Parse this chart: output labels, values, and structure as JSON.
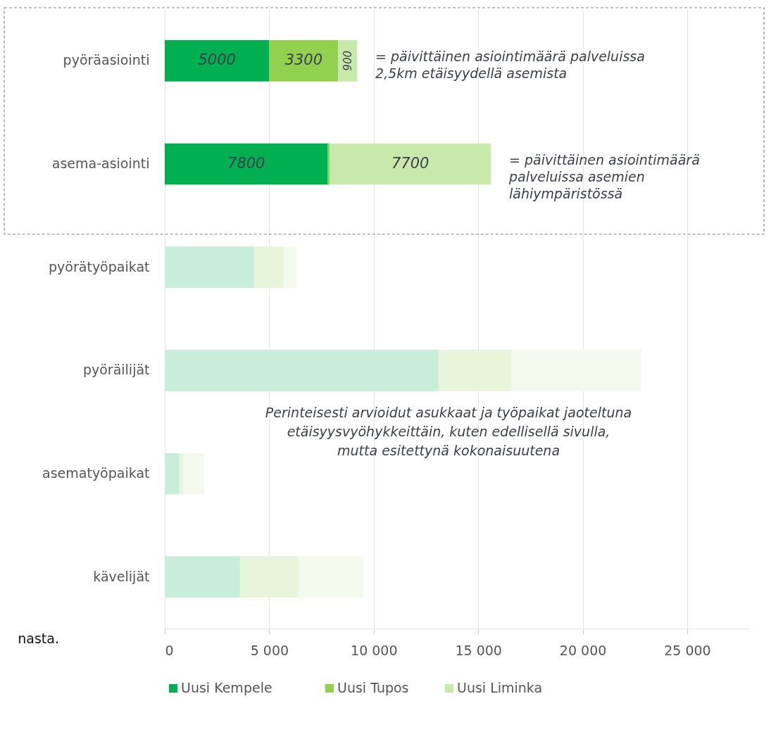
{
  "chart_data": {
    "type": "bar",
    "orientation": "horizontal",
    "stacked": true,
    "categories": [
      "pyöräasiointi",
      "asema-asiointi",
      "pyörätyöpaikat",
      "pyöräilijät",
      "asematyöpaikat",
      "kävelijät"
    ],
    "series": [
      {
        "name": "Uusi Kempele",
        "color": "#00b050",
        "colors": [
          "#00b050",
          "#00b050",
          "#c8eedb",
          "#c8eedb",
          "#c8eedb",
          "#c8eedb"
        ],
        "values": [
          5000,
          7800,
          4300,
          13100,
          700,
          3600
        ],
        "value_labels": [
          "5000",
          "7800",
          null,
          null,
          null,
          null
        ]
      },
      {
        "name": "Uusi Tupos",
        "color": "#92d050",
        "colors": [
          "#92d050",
          "#92d050",
          "#e8f5da",
          "#e8f5da",
          "#e8f5da",
          "#e8f5da"
        ],
        "values": [
          3300,
          100,
          1400,
          3500,
          200,
          2800
        ],
        "value_labels": [
          "3300",
          null,
          null,
          null,
          null,
          null
        ]
      },
      {
        "name": "Uusi Liminka",
        "color": "#c9e8ab",
        "colors": [
          "#c9e8ab",
          "#c9e8ab",
          "#f3f9ed",
          "#f3f9ed",
          "#f3f9ed",
          "#f3f9ed"
        ],
        "values": [
          900,
          7700,
          600,
          6200,
          1000,
          3100
        ],
        "value_labels": [
          "900",
          "7700",
          null,
          null,
          null,
          null
        ]
      }
    ],
    "xlim": [
      0,
      28000
    ],
    "xticks": [
      0,
      {
        "value": 5000,
        "label": "5 000"
      },
      {
        "value": 10000,
        "label": "10 000"
      },
      {
        "value": 15000,
        "label": "15 000"
      },
      {
        "value": 20000,
        "label": "20 000"
      },
      {
        "value": 25000,
        "label": "25 000"
      }
    ],
    "grid": "x",
    "legend": "bottom",
    "annotations": [
      {
        "text": "= päivittäinen asiointimäärä palveluissa\n   2,5km etäisyydellä asemista",
        "x": 9200,
        "y": "pyöräasiointi"
      },
      {
        "text": "= päivittäinen asiointimäärä\n    palveluissa asemien\n    lähiympäristössä",
        "x": 15600,
        "y": "asema-asiointi"
      },
      "Perinteisesti arvioidut asukkaat ja työpaikat jaoteltuna\netäisyysvyöhykkeittäin, kuten edellisellä sivulla,\nmutta esitettynä kokonaisuutena",
      "nasta."
    ]
  }
}
